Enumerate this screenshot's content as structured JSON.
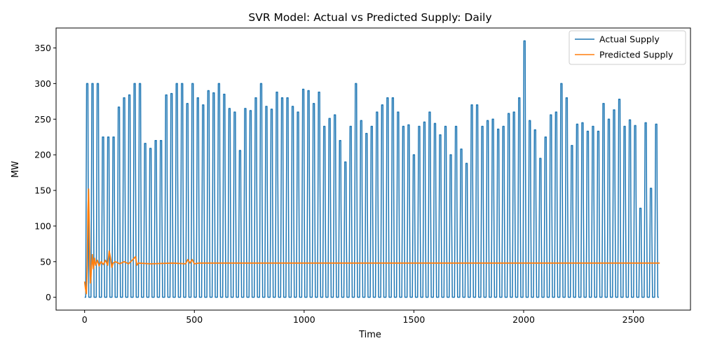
{
  "colors": {
    "actual": "#1f77b4",
    "predicted": "#ff7f0e"
  },
  "chart_data": {
    "type": "line",
    "title": "SVR Model: Actual vs Predicted Supply: Daily",
    "xlabel": "Time",
    "ylabel": "MW",
    "xlim": [
      -130,
      2760
    ],
    "ylim": [
      -18,
      378
    ],
    "xticks": [
      0,
      500,
      1000,
      1500,
      2000,
      2500
    ],
    "yticks": [
      0,
      50,
      100,
      150,
      200,
      250,
      300,
      350
    ],
    "grid": false,
    "legend": "top-right",
    "series": [
      {
        "name": "Actual Supply",
        "description": "daily on/off pattern, period ~24 steps",
        "period": 24,
        "peaks": [
          300,
          300,
          225,
          225,
          225,
          267,
          280,
          284,
          300,
          300,
          216,
          209,
          220,
          220,
          284,
          286,
          300,
          300,
          272,
          300,
          280,
          270,
          290,
          287,
          300,
          285,
          265,
          260,
          206,
          265,
          262,
          280,
          300,
          268,
          264,
          288,
          280,
          280,
          268,
          260,
          292,
          290,
          272,
          288,
          240,
          251,
          256,
          220,
          190,
          240,
          300,
          248,
          230,
          240,
          260,
          270,
          280,
          280,
          260,
          240,
          242,
          200,
          240,
          246,
          260,
          244,
          228,
          240,
          200,
          240,
          208,
          188,
          270,
          270,
          240,
          248,
          250,
          236,
          240,
          258,
          260,
          280,
          360,
          248,
          235,
          195,
          225,
          256,
          260,
          300,
          280,
          213,
          243,
          245,
          233,
          240,
          233,
          272,
          250,
          263,
          278,
          240,
          249,
          241,
          125,
          245,
          153,
          243
        ],
        "x_start": 0,
        "x_end": 2620
      },
      {
        "name": "Predicted Supply",
        "points": [
          [
            0,
            22
          ],
          [
            4,
            12
          ],
          [
            8,
            5
          ],
          [
            12,
            45
          ],
          [
            15,
            120
          ],
          [
            18,
            152
          ],
          [
            21,
            100
          ],
          [
            24,
            45
          ],
          [
            27,
            20
          ],
          [
            30,
            35
          ],
          [
            35,
            60
          ],
          [
            40,
            40
          ],
          [
            45,
            55
          ],
          [
            50,
            45
          ],
          [
            58,
            52
          ],
          [
            66,
            44
          ],
          [
            75,
            50
          ],
          [
            85,
            46
          ],
          [
            95,
            52
          ],
          [
            105,
            45
          ],
          [
            112,
            65
          ],
          [
            118,
            55
          ],
          [
            124,
            42
          ],
          [
            130,
            48
          ],
          [
            140,
            50
          ],
          [
            160,
            47
          ],
          [
            180,
            50
          ],
          [
            200,
            47
          ],
          [
            220,
            53
          ],
          [
            232,
            57
          ],
          [
            238,
            45
          ],
          [
            245,
            48
          ],
          [
            300,
            47
          ],
          [
            400,
            48
          ],
          [
            460,
            47
          ],
          [
            470,
            53
          ],
          [
            480,
            48
          ],
          [
            490,
            53
          ],
          [
            500,
            47
          ],
          [
            520,
            48
          ],
          [
            560,
            48
          ],
          [
            1000,
            48
          ],
          [
            1500,
            48
          ],
          [
            2000,
            48
          ],
          [
            2620,
            48
          ]
        ]
      }
    ]
  }
}
